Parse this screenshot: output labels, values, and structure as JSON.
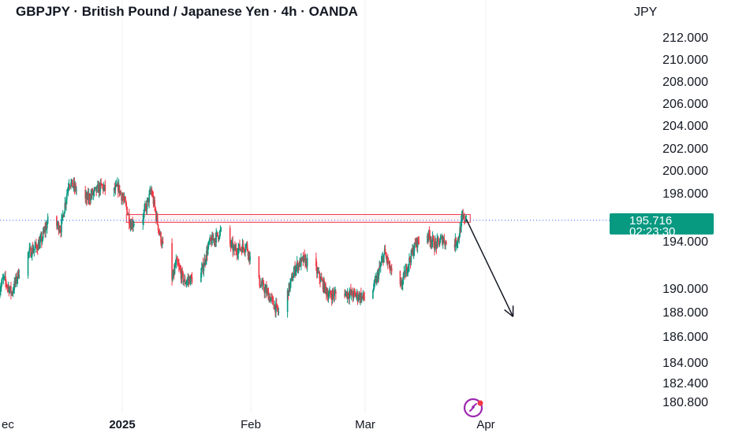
{
  "header": {
    "title": "GBPJPY · British Pound / Japanese Yen · 4h · OANDA",
    "currency": "JPY"
  },
  "price_tag": {
    "price": "195.716",
    "countdown": "02:23:30",
    "color": "#089981"
  },
  "colors": {
    "up": "#089981",
    "down": "#f23645",
    "zone": "#f23645",
    "arrow": "#131722",
    "logo": "#9c27b0"
  },
  "chart_data": {
    "type": "candlestick",
    "symbol": "GBPJPY",
    "timeframe": "4h",
    "y_axis": {
      "side": "right",
      "ticks": [
        {
          "label": "212.000",
          "value": 212
        },
        {
          "label": "210.000",
          "value": 210
        },
        {
          "label": "208.000",
          "value": 208
        },
        {
          "label": "206.000",
          "value": 206
        },
        {
          "label": "204.000",
          "value": 204
        },
        {
          "label": "202.000",
          "value": 202
        },
        {
          "label": "200.000",
          "value": 200
        },
        {
          "label": "198.000",
          "value": 198
        },
        {
          "label": "194.000",
          "value": 194
        },
        {
          "label": "190.000",
          "value": 190
        },
        {
          "label": "188.000",
          "value": 188
        },
        {
          "label": "186.000",
          "value": 186
        },
        {
          "label": "184.000",
          "value": 184
        },
        {
          "label": "182.400",
          "value": 182.4
        },
        {
          "label": "180.800",
          "value": 180.8
        }
      ]
    },
    "x_axis": {
      "ticks": [
        {
          "label": "ec",
          "date": "2024-12-01",
          "bold": false
        },
        {
          "label": "2025",
          "date": "2025-01-01",
          "bold": true
        },
        {
          "label": "Feb",
          "date": "2025-02-01",
          "bold": false
        },
        {
          "label": "Mar",
          "date": "2025-03-01",
          "bold": false
        },
        {
          "label": "Apr",
          "date": "2025-04-01",
          "bold": false
        }
      ]
    },
    "current_price": 195.716,
    "price_path": [
      [
        "2024-11-30",
        191.2
      ],
      [
        "2024-12-01",
        189.0
      ],
      [
        "2024-12-03",
        190.8
      ],
      [
        "2024-12-05",
        189.6
      ],
      [
        "2024-12-08",
        192.6
      ],
      [
        "2024-12-12",
        193.8
      ],
      [
        "2024-12-14",
        195.8
      ],
      [
        "2024-12-17",
        195.1
      ],
      [
        "2024-12-19",
        199.0
      ],
      [
        "2024-12-23",
        197.4
      ],
      [
        "2024-12-27",
        198.6
      ],
      [
        "2024-12-29",
        197.8
      ],
      [
        "2024-12-31",
        198.5
      ],
      [
        "2025-01-02",
        196.8
      ],
      [
        "2025-01-03",
        195.4
      ],
      [
        "2025-01-06",
        196.0
      ],
      [
        "2025-01-08",
        198.2
      ],
      [
        "2025-01-10",
        194.6
      ],
      [
        "2025-01-13",
        190.6
      ],
      [
        "2025-01-14",
        192.2
      ],
      [
        "2025-01-16",
        190.5
      ],
      [
        "2025-01-20",
        191.2
      ],
      [
        "2025-01-22",
        193.8
      ],
      [
        "2025-01-25",
        194.8
      ],
      [
        "2025-01-28",
        193.2
      ],
      [
        "2025-01-31",
        193.6
      ],
      [
        "2025-02-02",
        191.0
      ],
      [
        "2025-02-05",
        189.6
      ],
      [
        "2025-02-08",
        187.8
      ],
      [
        "2025-02-09",
        188.5
      ],
      [
        "2025-02-12",
        191.8
      ],
      [
        "2025-02-14",
        192.4
      ],
      [
        "2025-02-17",
        191.5
      ],
      [
        "2025-02-20",
        189.4
      ],
      [
        "2025-02-24",
        189.6
      ],
      [
        "2025-02-28",
        189.3
      ],
      [
        "2025-03-02",
        189.0
      ],
      [
        "2025-03-04",
        190.8
      ],
      [
        "2025-03-06",
        193.0
      ],
      [
        "2025-03-08",
        191.0
      ],
      [
        "2025-03-10",
        190.0
      ],
      [
        "2025-03-12",
        192.0
      ],
      [
        "2025-03-14",
        193.8
      ],
      [
        "2025-03-17",
        194.6
      ],
      [
        "2025-03-19",
        193.6
      ],
      [
        "2025-03-21",
        194.2
      ],
      [
        "2025-03-23",
        193.2
      ],
      [
        "2025-03-25",
        194.3
      ],
      [
        "2025-03-26",
        195.9
      ],
      [
        "2025-03-27",
        195.716
      ]
    ],
    "resistance_zone": {
      "from": "2025-01-02",
      "to": "2025-03-28",
      "top": 196.2,
      "bottom": 195.55
    },
    "arrow": {
      "from": [
        "2025-03-27",
        195.8
      ],
      "to": [
        "2025-04-08",
        187.6
      ]
    }
  }
}
